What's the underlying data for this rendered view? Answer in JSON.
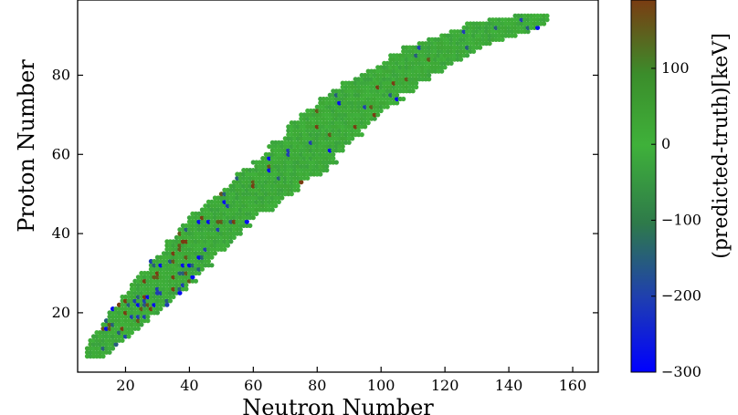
{
  "chart_data": {
    "type": "scatter",
    "xlabel": "Neutron Number",
    "ylabel": "Proton Number",
    "xlim": [
      5,
      168
    ],
    "ylim": [
      5,
      99
    ],
    "xticks": [
      20,
      40,
      60,
      80,
      100,
      120,
      140,
      160
    ],
    "yticks": [
      20,
      40,
      60,
      80
    ],
    "legend": "none",
    "grid": false,
    "colorbar": {
      "label": "(predicted-truth)[keV]",
      "range": [
        -300,
        190
      ],
      "ticks": [
        -300,
        -200,
        -100,
        0,
        100
      ],
      "colormap": [
        "#0000ff",
        "#2e6a50",
        "#3fb13a",
        "#3fa232",
        "#6b4f14",
        "#8a3a10"
      ]
    },
    "nuclide_chart": {
      "description_note": "Each point is a nucleus (N, Z); color encodes residual",
      "ridge": [
        [
          8,
          8
        ],
        [
          20,
          18
        ],
        [
          30,
          26
        ],
        [
          40,
          35
        ],
        [
          50,
          44
        ],
        [
          60,
          50
        ],
        [
          70,
          56
        ],
        [
          80,
          64
        ],
        [
          90,
          72
        ],
        [
          100,
          78
        ],
        [
          110,
          82
        ],
        [
          120,
          87
        ],
        [
          130,
          90
        ],
        [
          140,
          93
        ],
        [
          152,
          95
        ]
      ],
      "z_min": 8,
      "z_max": 95,
      "residual_distribution": {
        "mostly_near_zero": true,
        "outlier_values": [
          -280,
          -200,
          -150,
          160,
          190
        ]
      }
    }
  }
}
